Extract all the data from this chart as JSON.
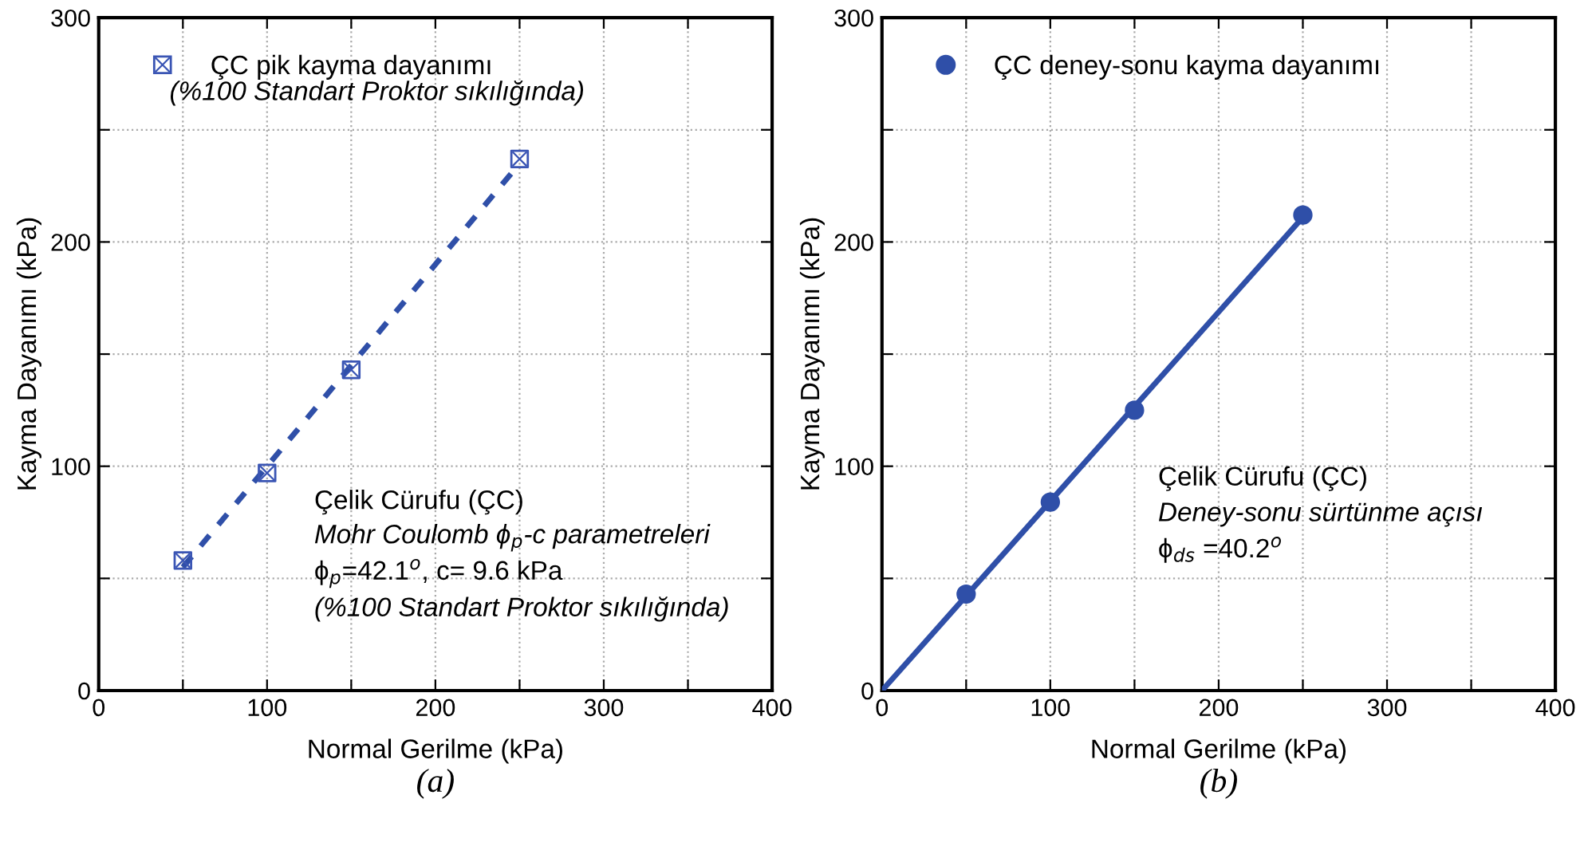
{
  "chart_data": [
    {
      "type": "scatter",
      "xlabel": "Normal Gerilme (kPa)",
      "ylabel": "Kayma Dayanımı (kPa)",
      "xlim": [
        0,
        400
      ],
      "ylim": [
        0,
        300
      ],
      "xticks": [
        0,
        {
          "value": 50,
          "label": null
        },
        100,
        {
          "value": 150,
          "label": null
        },
        200,
        {
          "value": 250,
          "label": null
        },
        300,
        {
          "value": 350,
          "label": null
        },
        400
      ],
      "yticks": [
        0,
        {
          "value": 50,
          "label": null
        },
        100,
        {
          "value": 150,
          "label": null
        },
        200,
        {
          "value": 250,
          "label": null
        },
        300
      ],
      "grid": true,
      "legend": "top left",
      "series": [
        {
          "name": "ÇC pik kayma dayanımı",
          "marker": "square",
          "color": "#3a55b4",
          "x": [
            50,
            100,
            150,
            250
          ],
          "values": [
            58,
            97,
            143,
            237
          ]
        },
        {
          "type": "line",
          "line_style": "dashed",
          "marker": "none",
          "color": "#2f4fa8",
          "x": [
            50,
            250
          ],
          "values": [
            55,
            235
          ]
        }
      ],
      "annotations": [
        "(%100 Standart Proktor sıkılığında)",
        "Çelik Cürufu (ÇC)",
        "Mohr Coulomb ϕ$_{p}$-c parametreleri",
        "ϕ$_{p}$=42.1$^{o}$, c= 9.6 kPa",
        "(%100 Standart Proktor sıkılığında)",
        "(a)"
      ]
    },
    {
      "type": "scatter",
      "xlabel": "Normal Gerilme (kPa)",
      "ylabel": "Kayma Dayanımı (kPa)",
      "xlim": [
        0,
        400
      ],
      "ylim": [
        0,
        300
      ],
      "xticks": [
        0,
        {
          "value": 50,
          "label": null
        },
        100,
        {
          "value": 150,
          "label": null
        },
        200,
        {
          "value": 250,
          "label": null
        },
        300,
        {
          "value": 350,
          "label": null
        },
        400
      ],
      "yticks": [
        0,
        {
          "value": 50,
          "label": null
        },
        100,
        {
          "value": 150,
          "label": null
        },
        200,
        {
          "value": 250,
          "label": null
        },
        300
      ],
      "grid": true,
      "legend": "top left",
      "series": [
        {
          "name": "ÇC deney-sonu kayma dayanımı",
          "marker": "circle",
          "color": "#2f4fa8",
          "x": [
            50,
            100,
            150,
            250
          ],
          "values": [
            43,
            84,
            125,
            212
          ]
        },
        {
          "type": "line",
          "line_style": "solid",
          "marker": "none",
          "color": "#2f4fa8",
          "x": [
            0,
            250
          ],
          "values": [
            0,
            211
          ]
        }
      ],
      "annotations": [
        "Çelik Cürufu (ÇC)",
        "Deney-sonu sürtünme açısı",
        "ϕ$_{ds}$ =40.2$^{o}$",
        "(b)"
      ]
    }
  ]
}
